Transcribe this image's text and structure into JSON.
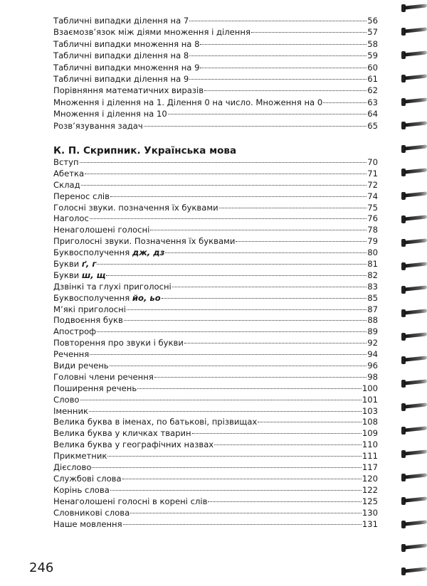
{
  "top_list": [
    {
      "title": "Табличні випадки ділення на 7",
      "page": "56"
    },
    {
      "title": "Взаємозв’язок між діями множення і ділення",
      "page": "57"
    },
    {
      "title": "Табличні випадки множення на 8",
      "page": "58"
    },
    {
      "title": "Табличні випадки ділення на 8",
      "page": "59"
    },
    {
      "title": "Табличні випадки множення на 9",
      "page": "60"
    },
    {
      "title": "Табличні випадки ділення на 9",
      "page": "61"
    },
    {
      "title": "Порівняння математичних виразів",
      "page": "62"
    },
    {
      "title": "Множення і ділення на 1. Ділення 0 на число. Множення на 0",
      "page": "63"
    },
    {
      "title": "Множення і ділення на 10",
      "page": "64"
    },
    {
      "title": "Розв’язування задач",
      "page": "65"
    }
  ],
  "section": {
    "heading": "К. П. Скрипник. Українська мова",
    "items": [
      {
        "title": "Вступ",
        "page": "70"
      },
      {
        "title": "Абетка",
        "page": "71"
      },
      {
        "title": "Склад",
        "page": "72"
      },
      {
        "title": "Перенос слів",
        "page": "74"
      },
      {
        "title": "Голосні звуки. позначення їх буквами",
        "page": "75"
      },
      {
        "title": "Наголос",
        "page": "76"
      },
      {
        "title": "Ненаголошені голосні",
        "page": "78"
      },
      {
        "title": "Приголосні звуки. Позначення їх буквами",
        "page": "79"
      },
      {
        "title": "Буквосполучення ",
        "emph": "дж, дз",
        "page": "80"
      },
      {
        "title": "Букви ",
        "emph": "ґ, г",
        "page": "81"
      },
      {
        "title": "Букви ",
        "emph": "ш, щ",
        "page": "82"
      },
      {
        "title": "Дзвінкі та глухі приголосні",
        "page": "83"
      },
      {
        "title": "Буквосполучення ",
        "emph": "йо, ьо",
        "page": "85"
      },
      {
        "title": "М’які приголосні",
        "page": "87"
      },
      {
        "title": "Подвоєння букв",
        "page": "88"
      },
      {
        "title": "Апостроф",
        "page": "89"
      },
      {
        "title": "Повторення про звуки і букви",
        "page": "92"
      },
      {
        "title": "Речення",
        "page": "94"
      },
      {
        "title": "Види речень",
        "page": "96"
      },
      {
        "title": "Головні члени речення",
        "page": "98"
      },
      {
        "title": "Поширення речень",
        "page": "100"
      },
      {
        "title": "Слово",
        "page": "101"
      },
      {
        "title": "Іменник",
        "page": "103"
      },
      {
        "title": "Велика буква в іменах, по батькові, прізвищах",
        "page": "108"
      },
      {
        "title": "Велика буква у кличках тварин",
        "page": "109"
      },
      {
        "title": "Велика буква у географічних назвах",
        "page": "110"
      },
      {
        "title": "Прикметник",
        "page": "111"
      },
      {
        "title": "Дієслово",
        "page": "117"
      },
      {
        "title": "Службові слова",
        "page": "120"
      },
      {
        "title": "Корінь слова",
        "page": "122"
      },
      {
        "title": "Ненаголошені голосні в корені слів",
        "page": "125"
      },
      {
        "title": "Словникові слова",
        "page": "130"
      },
      {
        "title": "Наше мовлення",
        "page": "131"
      }
    ]
  },
  "page_number": "246"
}
